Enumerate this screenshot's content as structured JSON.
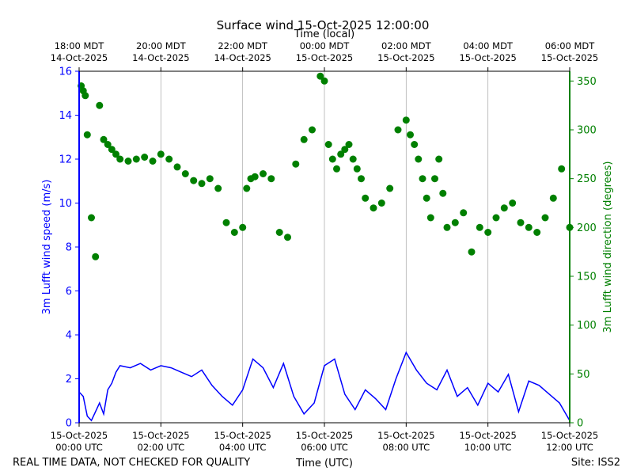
{
  "chart_data": {
    "type": "line",
    "title": "Surface wind 15-Oct-2025 12:00:00",
    "top_axis_label": "Time (local)",
    "bottom_axis_label": "Time (UTC)",
    "left_axis_label": "3m Lufft wind speed (m/s)",
    "right_axis_label": "3m Lufft wind direction (degrees)",
    "footer_left": "REAL TIME DATA, NOT CHECKED FOR QUALITY",
    "footer_right": "Site: ISS2",
    "colors": {
      "speed": "#0000ff",
      "direction": "#008000",
      "grid": "#b0b0b0"
    },
    "x_range_hours_utc": [
      0,
      12
    ],
    "left_ylim": [
      0,
      16
    ],
    "right_ylim": [
      0,
      360
    ],
    "left_ticks": [
      "0",
      "2",
      "4",
      "6",
      "8",
      "10",
      "12",
      "14",
      "16"
    ],
    "right_ticks": [
      "0",
      "50",
      "100",
      "150",
      "200",
      "250",
      "300",
      "350"
    ],
    "bottom_ticks": [
      {
        "hour": 0,
        "line1": "15-Oct-2025",
        "line2": "00:00 UTC"
      },
      {
        "hour": 2,
        "line1": "15-Oct-2025",
        "line2": "02:00 UTC"
      },
      {
        "hour": 4,
        "line1": "15-Oct-2025",
        "line2": "04:00 UTC"
      },
      {
        "hour": 6,
        "line1": "15-Oct-2025",
        "line2": "06:00 UTC"
      },
      {
        "hour": 8,
        "line1": "15-Oct-2025",
        "line2": "08:00 UTC"
      },
      {
        "hour": 10,
        "line1": "15-Oct-2025",
        "line2": "10:00 UTC"
      },
      {
        "hour": 12,
        "line1": "15-Oct-2025",
        "line2": "12:00 UTC"
      }
    ],
    "top_ticks": [
      {
        "hour": 0,
        "line1": "18:00 MDT",
        "line2": "14-Oct-2025"
      },
      {
        "hour": 2,
        "line1": "20:00 MDT",
        "line2": "14-Oct-2025"
      },
      {
        "hour": 4,
        "line1": "22:00 MDT",
        "line2": "14-Oct-2025"
      },
      {
        "hour": 6,
        "line1": "00:00 MDT",
        "line2": "15-Oct-2025"
      },
      {
        "hour": 8,
        "line1": "02:00 MDT",
        "line2": "15-Oct-2025"
      },
      {
        "hour": 10,
        "line1": "04:00 MDT",
        "line2": "15-Oct-2025"
      },
      {
        "hour": 12,
        "line1": "06:00 MDT",
        "line2": "15-Oct-2025"
      }
    ],
    "series": [
      {
        "name": "3m Lufft wind speed (m/s)",
        "axis": "left",
        "style": "line",
        "x_hours": [
          0.0,
          0.1,
          0.2,
          0.3,
          0.4,
          0.5,
          0.6,
          0.7,
          0.8,
          0.9,
          1.0,
          1.25,
          1.5,
          1.75,
          2.0,
          2.25,
          2.5,
          2.75,
          3.0,
          3.25,
          3.5,
          3.75,
          4.0,
          4.25,
          4.5,
          4.75,
          5.0,
          5.25,
          5.5,
          5.75,
          6.0,
          6.25,
          6.5,
          6.75,
          7.0,
          7.25,
          7.5,
          7.75,
          8.0,
          8.25,
          8.5,
          8.75,
          9.0,
          9.25,
          9.5,
          9.75,
          10.0,
          10.25,
          10.5,
          10.75,
          11.0,
          11.25,
          11.5,
          11.75,
          12.0
        ],
        "values": [
          1.4,
          1.2,
          0.3,
          0.1,
          0.5,
          0.9,
          0.4,
          1.5,
          1.8,
          2.3,
          2.6,
          2.5,
          2.7,
          2.4,
          2.6,
          2.5,
          2.3,
          2.1,
          2.4,
          1.7,
          1.2,
          0.8,
          1.5,
          2.9,
          2.5,
          1.6,
          2.7,
          1.2,
          0.4,
          0.9,
          2.6,
          2.9,
          1.3,
          0.6,
          1.5,
          1.1,
          0.6,
          2.0,
          3.2,
          2.4,
          1.8,
          1.5,
          2.4,
          1.2,
          1.6,
          0.8,
          1.8,
          1.4,
          2.2,
          0.5,
          1.9,
          1.7,
          1.3,
          0.9,
          0.1
        ]
      },
      {
        "name": "3m Lufft wind direction (degrees)",
        "axis": "right",
        "style": "points",
        "x_hours": [
          0.05,
          0.1,
          0.15,
          0.2,
          0.3,
          0.4,
          0.5,
          0.6,
          0.7,
          0.8,
          0.9,
          1.0,
          1.2,
          1.4,
          1.6,
          1.8,
          2.0,
          2.2,
          2.4,
          2.6,
          2.8,
          3.0,
          3.2,
          3.4,
          3.6,
          3.8,
          4.0,
          4.1,
          4.2,
          4.3,
          4.5,
          4.7,
          4.9,
          5.1,
          5.3,
          5.5,
          5.7,
          5.9,
          6.0,
          6.1,
          6.2,
          6.3,
          6.4,
          6.5,
          6.6,
          6.7,
          6.8,
          6.9,
          7.0,
          7.2,
          7.4,
          7.6,
          7.8,
          8.0,
          8.1,
          8.2,
          8.3,
          8.4,
          8.5,
          8.6,
          8.7,
          8.8,
          8.9,
          9.0,
          9.2,
          9.4,
          9.6,
          9.8,
          10.0,
          10.2,
          10.4,
          10.6,
          10.8,
          11.0,
          11.2,
          11.4,
          11.6,
          11.8,
          12.0
        ],
        "values": [
          345,
          340,
          335,
          295,
          210,
          170,
          325,
          290,
          285,
          280,
          275,
          270,
          268,
          270,
          272,
          268,
          275,
          270,
          262,
          255,
          248,
          245,
          250,
          240,
          205,
          195,
          200,
          240,
          250,
          252,
          255,
          250,
          195,
          190,
          265,
          290,
          300,
          355,
          350,
          285,
          270,
          260,
          275,
          280,
          285,
          270,
          260,
          250,
          230,
          220,
          225,
          240,
          300,
          310,
          295,
          285,
          270,
          250,
          230,
          210,
          250,
          270,
          235,
          200,
          205,
          215,
          175,
          200,
          195,
          210,
          220,
          225,
          205,
          200,
          195,
          210,
          230,
          260,
          200
        ]
      }
    ]
  }
}
